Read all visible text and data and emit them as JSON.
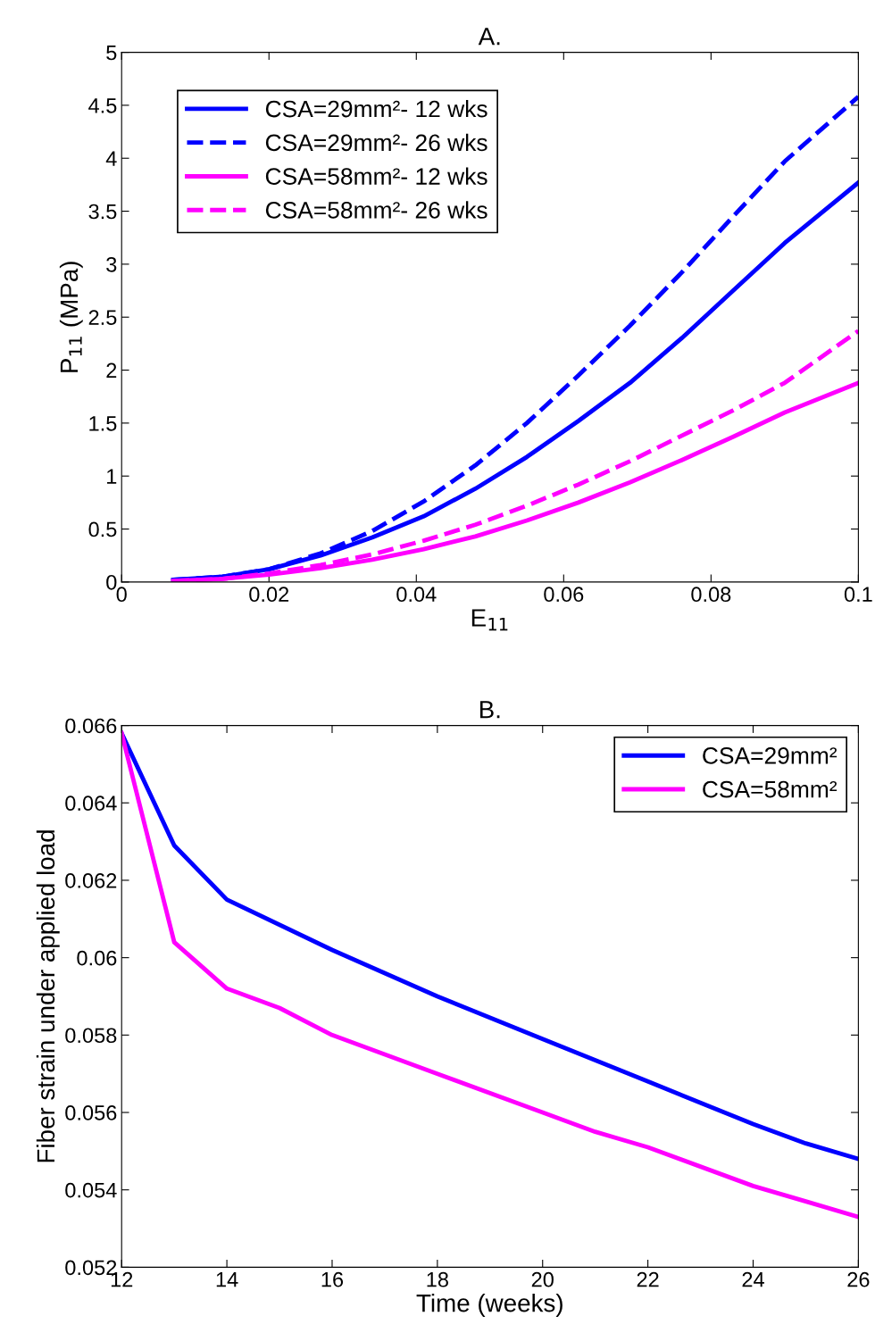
{
  "chart_data": [
    {
      "type": "line",
      "title": "A.",
      "xlabel": "E$_{11}$",
      "ylabel": "P$_{11}$ (MPa)",
      "x": [
        0.007,
        0.0137,
        0.02,
        0.027,
        0.034,
        0.041,
        0.048,
        0.055,
        0.062,
        0.069,
        0.076,
        0.083,
        0.09,
        0.1
      ],
      "series": [
        {
          "name": "CSA=29mm²- 12 wks",
          "color": "#0000ff",
          "line_style": "solid",
          "values": [
            0.02,
            0.05,
            0.12,
            0.25,
            0.42,
            0.62,
            0.88,
            1.18,
            1.52,
            1.88,
            2.3,
            2.75,
            3.2,
            3.77
          ]
        },
        {
          "name": "CSA=29mm²- 26 wks",
          "color": "#0000ff",
          "line_style": "dashed",
          "values": [
            0.02,
            0.05,
            0.12,
            0.27,
            0.48,
            0.76,
            1.1,
            1.5,
            1.95,
            2.42,
            2.92,
            3.45,
            3.97,
            4.58
          ]
        },
        {
          "name": "CSA=58mm²- 12 wks",
          "color": "#ff00ff",
          "line_style": "solid",
          "values": [
            0.01,
            0.03,
            0.07,
            0.13,
            0.21,
            0.31,
            0.43,
            0.58,
            0.75,
            0.94,
            1.15,
            1.37,
            1.6,
            1.88
          ]
        },
        {
          "name": "CSA=58mm²- 26 wks",
          "color": "#ff00ff",
          "line_style": "dashed",
          "values": [
            0.01,
            0.03,
            0.08,
            0.16,
            0.26,
            0.39,
            0.54,
            0.72,
            0.92,
            1.14,
            1.38,
            1.62,
            1.88,
            2.37
          ]
        }
      ],
      "xlim": [
        0,
        0.1
      ],
      "xticks": [
        0,
        0.02,
        0.04,
        0.06,
        0.08,
        0.1
      ],
      "ylim": [
        0,
        5
      ],
      "yticks": [
        0,
        0.5,
        1,
        1.5,
        2,
        2.5,
        3,
        3.5,
        4,
        4.5,
        5
      ],
      "legend": "top left",
      "grid": false,
      "marker": "none"
    },
    {
      "type": "line",
      "title": "B.",
      "xlabel": "Time (weeks)",
      "ylabel": "Fiber strain under applied load",
      "series": [
        {
          "name": "CSA=29mm²",
          "color": "#0000ff",
          "line_style": "solid",
          "x": [
            12,
            13,
            14,
            16,
            18,
            20,
            22,
            24,
            25,
            26
          ],
          "values": [
            0.0658,
            0.0629,
            0.0615,
            0.0602,
            0.059,
            0.0579,
            0.0568,
            0.0557,
            0.0552,
            0.0548
          ]
        },
        {
          "name": "CSA=58mm²",
          "color": "#ff00ff",
          "line_style": "solid",
          "x": [
            12,
            13,
            14,
            15,
            16,
            18,
            20,
            21,
            22,
            24,
            25,
            26
          ],
          "values": [
            0.0658,
            0.0604,
            0.0592,
            0.0587,
            0.058,
            0.057,
            0.056,
            0.0555,
            0.0551,
            0.0541,
            0.0537,
            0.0533
          ]
        }
      ],
      "xlim": [
        12,
        26
      ],
      "xticks": [
        12,
        14,
        16,
        18,
        20,
        22,
        24,
        26
      ],
      "ylim": [
        0.052,
        0.066
      ],
      "yticks": [
        0.052,
        0.054,
        0.056,
        0.058,
        0.06,
        0.062,
        0.064,
        0.066
      ],
      "legend": "top right",
      "grid": false,
      "marker": "none"
    }
  ]
}
